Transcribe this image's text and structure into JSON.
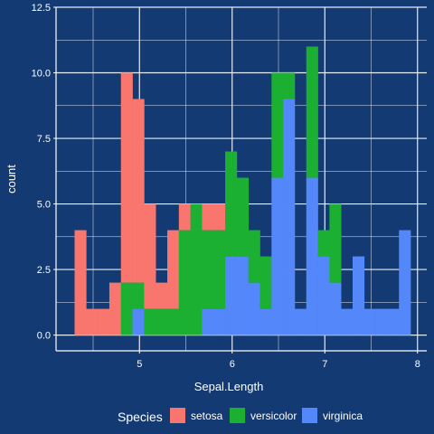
{
  "chart_data": {
    "type": "bar",
    "subtype": "stacked-histogram",
    "title": "",
    "xlabel": "Sepal.Length",
    "ylabel": "count",
    "xlim": [
      4.1,
      8.1
    ],
    "ylim": [
      -0.6,
      12.5
    ],
    "xticks": [
      5,
      6,
      7,
      8
    ],
    "xtick_labels": [
      "5",
      "6",
      "7",
      "8"
    ],
    "yticks": [
      0,
      2.5,
      5,
      7.5,
      10,
      12.5
    ],
    "ytick_labels": [
      "0.0",
      "2.5",
      "5.0",
      "7.5",
      "10.0",
      "12.5"
    ],
    "grid": true,
    "legend": {
      "title": "Species",
      "position": "bottom"
    },
    "bin_width": 0.125,
    "bins": [
      4.3,
      4.425,
      4.55,
      4.675,
      4.8,
      4.925,
      5.05,
      5.175,
      5.3,
      5.425,
      5.55,
      5.675,
      5.8,
      5.925,
      6.05,
      6.175,
      6.3,
      6.425,
      6.55,
      6.675,
      6.8,
      6.925,
      7.05,
      7.175,
      7.3,
      7.425,
      7.55,
      7.675,
      7.8,
      7.925
    ],
    "series": [
      {
        "name": "setosa",
        "color": "#f8766d",
        "values": [
          4,
          1,
          1,
          2,
          8,
          7,
          4,
          1,
          3,
          1,
          0,
          1,
          1,
          0,
          0,
          0,
          0,
          0,
          0,
          0,
          0,
          0,
          0,
          0,
          0,
          0,
          0,
          0,
          0,
          0
        ]
      },
      {
        "name": "versicolor",
        "color": "#1cb033",
        "values": [
          0,
          0,
          0,
          0,
          2,
          1,
          1,
          1,
          1,
          4,
          5,
          3,
          3,
          4,
          3,
          2,
          2,
          4,
          1,
          0,
          5,
          1,
          3,
          0,
          0,
          0,
          0,
          0,
          0,
          0
        ]
      },
      {
        "name": "virginica",
        "color": "#5487fa",
        "values": [
          0,
          0,
          0,
          0,
          0,
          1,
          0,
          0,
          0,
          0,
          0,
          1,
          1,
          3,
          3,
          2,
          1,
          6,
          9,
          1,
          6,
          3,
          2,
          1,
          3,
          1,
          1,
          1,
          4,
          0
        ]
      }
    ]
  }
}
